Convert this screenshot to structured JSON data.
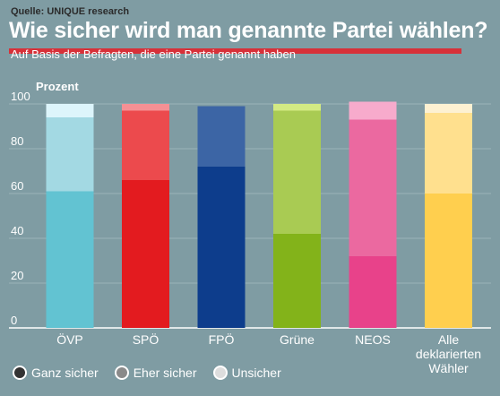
{
  "header": {
    "source": "Quelle: UNIQUE research",
    "title": "Wie sicher wird man genannte Partei wählen?",
    "subtitle": "Auf Basis der Befragten, die eine Partei genannt haben"
  },
  "legend": {
    "items": [
      {
        "label": "Ganz sicher",
        "color": "#333333"
      },
      {
        "label": "Eher sicher",
        "color": "#8a8a8a"
      },
      {
        "label": "Unsicher",
        "color": "#dddddd"
      }
    ]
  },
  "chart_data": {
    "type": "bar",
    "stacked": true,
    "ylabel": "Prozent",
    "ylim": [
      0,
      100
    ],
    "yticks": [
      0,
      20,
      40,
      60,
      80,
      100
    ],
    "grid": true,
    "categories": [
      "ÖVP",
      "SPÖ",
      "FPÖ",
      "Grüne",
      "NEOS",
      "Alle deklarierten Wähler"
    ],
    "series": [
      {
        "name": "Ganz sicher",
        "values": [
          61,
          66,
          72,
          42,
          32,
          60
        ]
      },
      {
        "name": "Eher sicher",
        "values": [
          33,
          31,
          27,
          55,
          61,
          36
        ]
      },
      {
        "name": "Unsicher",
        "values": [
          6,
          3,
          0,
          3,
          8,
          4
        ]
      }
    ],
    "colors": [
      [
        "#62c3d2",
        "#a3d9e3",
        "#ddf5fb"
      ],
      [
        "#e31b1f",
        "#ec4a4d",
        "#f59094"
      ],
      [
        "#0d3d8c",
        "#3c65a5",
        "#7b96c2"
      ],
      [
        "#83b31a",
        "#a9cb53",
        "#d3ea83"
      ],
      [
        "#e8428a",
        "#eb69a0",
        "#f7abcc"
      ],
      [
        "#ffcf4e",
        "#ffe08e",
        "#fdf1d2"
      ]
    ]
  }
}
